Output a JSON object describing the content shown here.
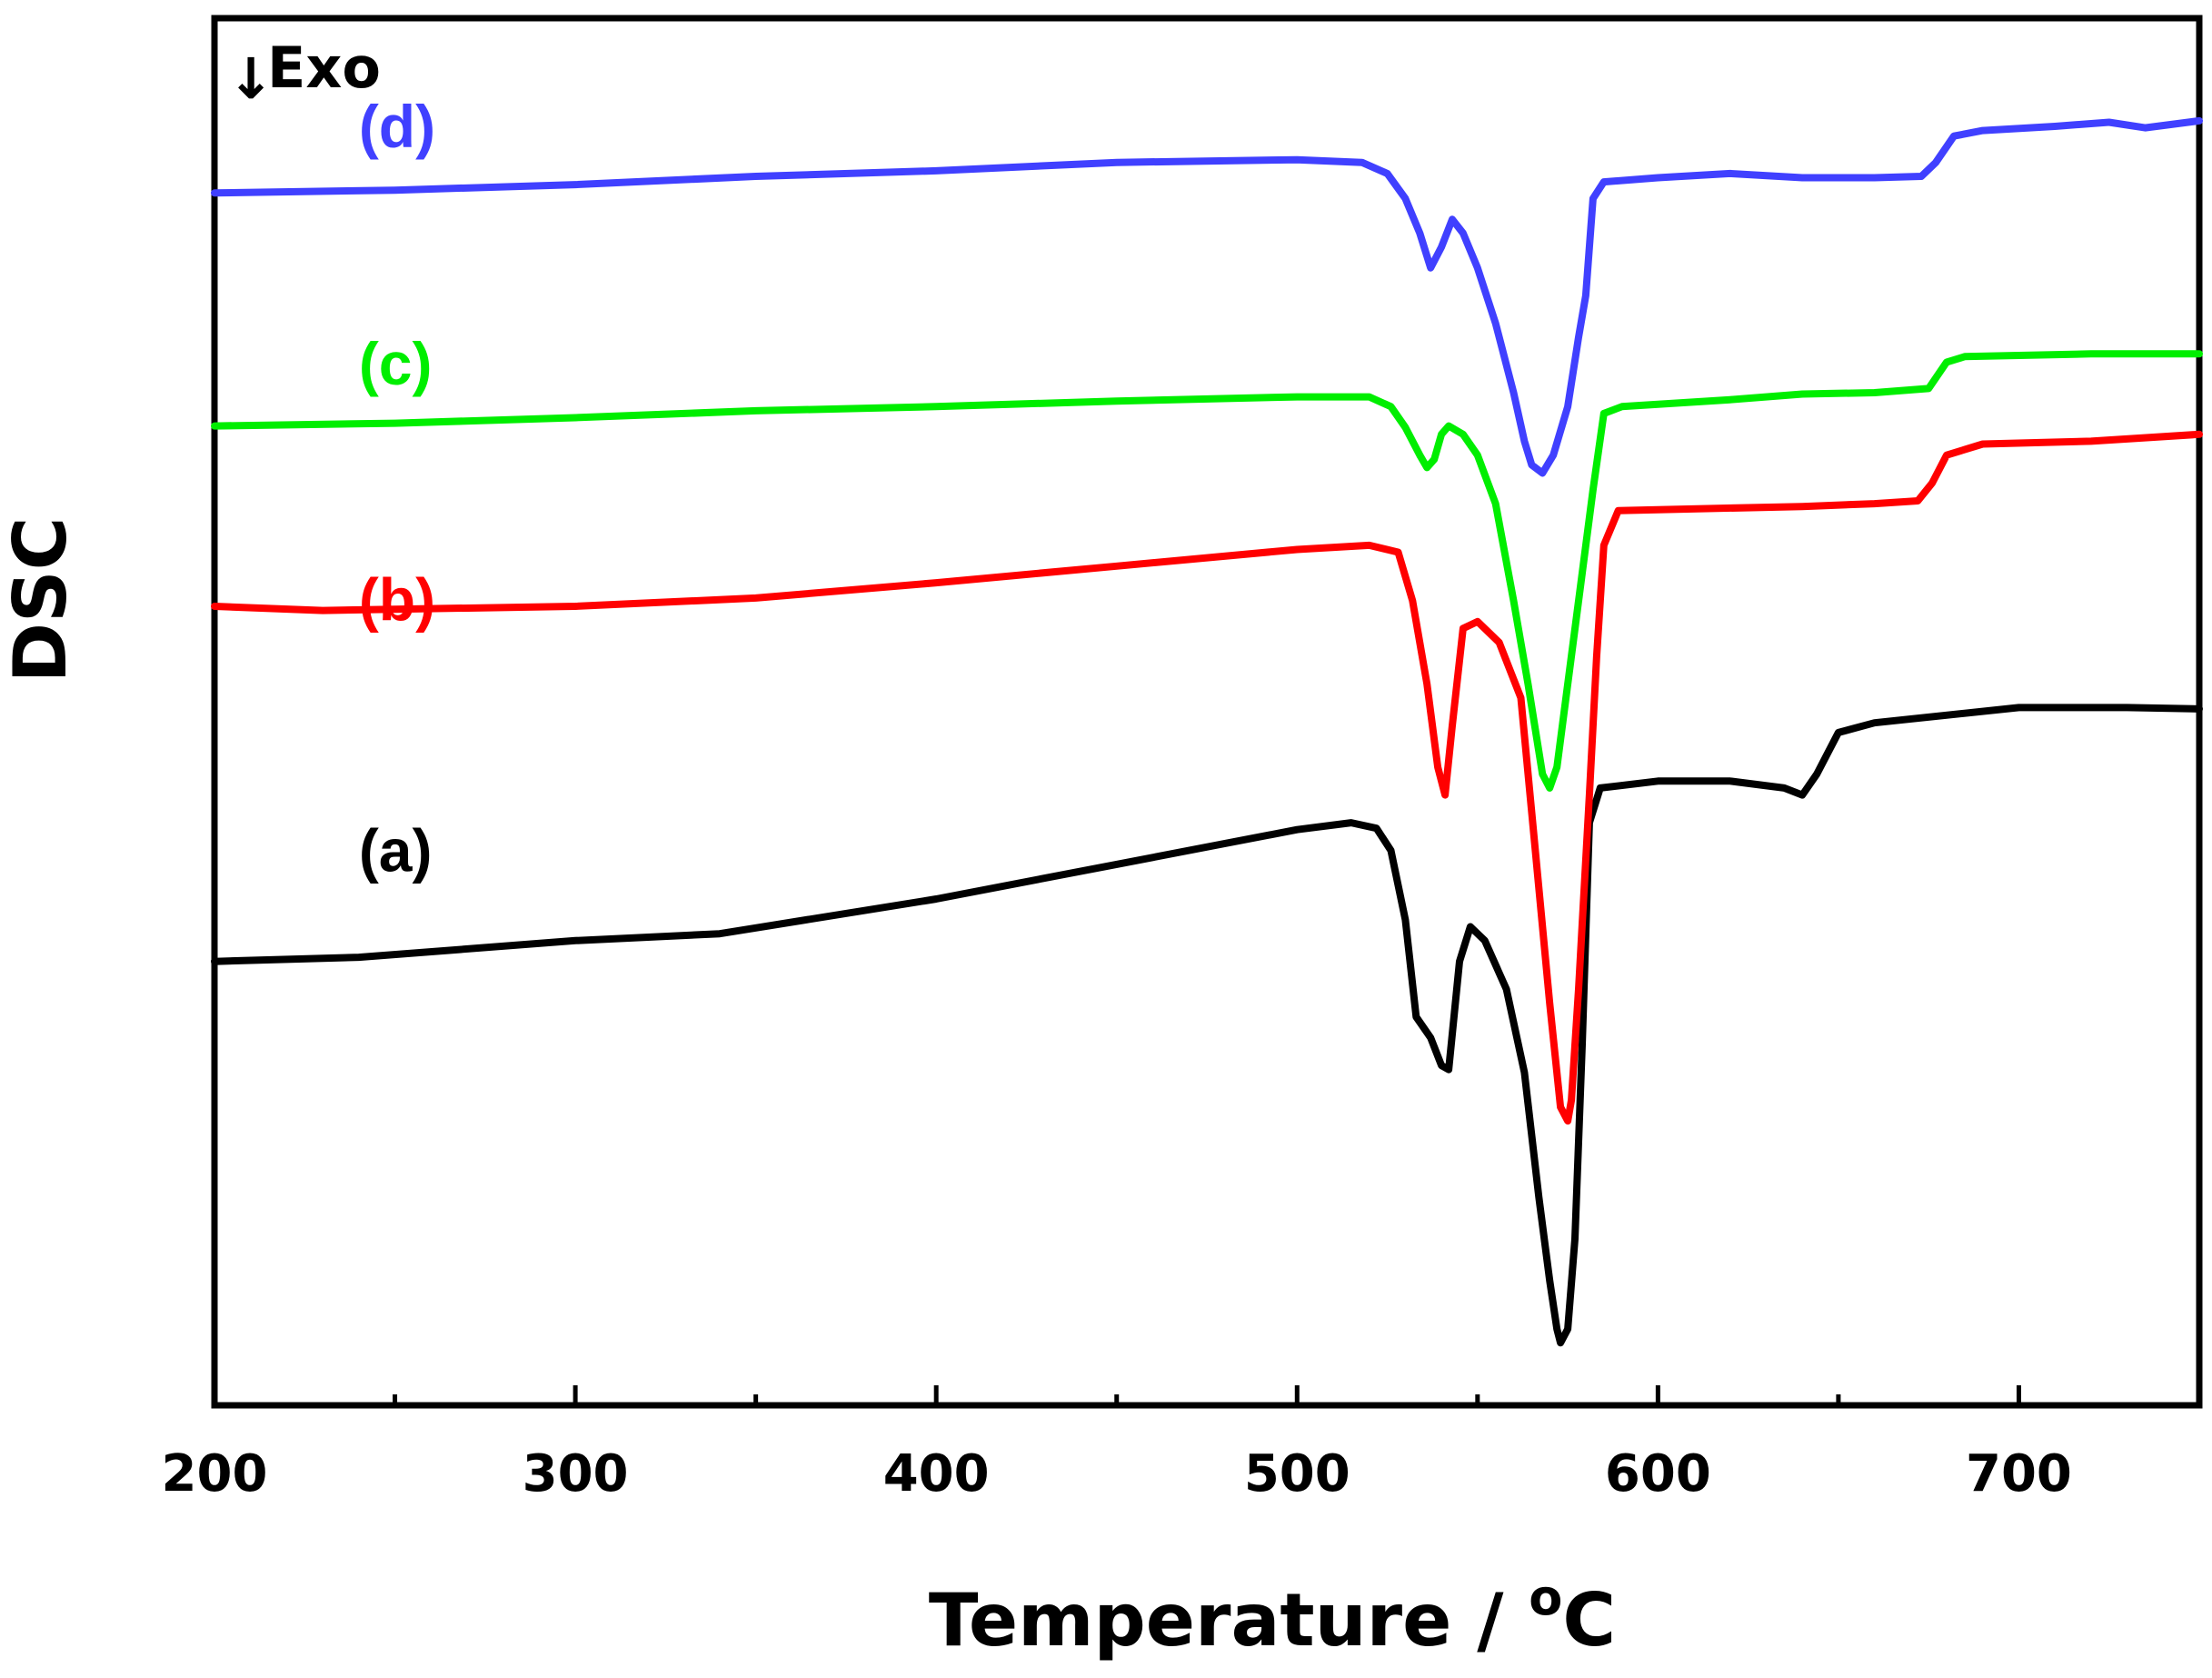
{
  "chart_data": {
    "type": "line",
    "title": "",
    "xlabel_main": "Temperature / ",
    "xlabel_degree": "o",
    "xlabel_unit": "C",
    "ylabel": "DSC",
    "xlim": [
      200,
      750
    ],
    "ylim": [
      0,
      100
    ],
    "x_ticks": [
      200,
      300,
      400,
      500,
      600,
      700
    ],
    "x_tick_labels": [
      "200",
      "300",
      "400",
      "500",
      "600",
      "700"
    ],
    "x_minor_ticks": [
      250,
      350,
      450,
      550,
      650
    ],
    "y_ticks_shown": false,
    "annotation": {
      "arrow": "↓",
      "text": "Exo"
    },
    "series": [
      {
        "name": "(a)",
        "color": "#000000",
        "label_at": [
          240,
          38.5
        ],
        "points": [
          [
            200,
            32
          ],
          [
            240,
            32.3
          ],
          [
            300,
            33.5
          ],
          [
            340,
            34
          ],
          [
            400,
            36.5
          ],
          [
            450,
            39
          ],
          [
            500,
            41.5
          ],
          [
            515,
            42
          ],
          [
            522,
            41.6
          ],
          [
            526,
            40
          ],
          [
            530,
            35
          ],
          [
            533,
            28
          ],
          [
            537,
            26.5
          ],
          [
            540,
            24.5
          ],
          [
            542,
            24.2
          ],
          [
            545,
            32
          ],
          [
            548,
            34.5
          ],
          [
            552,
            33.5
          ],
          [
            558,
            30
          ],
          [
            563,
            24
          ],
          [
            567,
            15
          ],
          [
            570,
            9
          ],
          [
            572,
            5.5
          ],
          [
            573,
            4.5
          ],
          [
            575,
            5.5
          ],
          [
            577,
            12
          ],
          [
            579,
            26
          ],
          [
            581,
            42
          ],
          [
            584,
            44.5
          ],
          [
            600,
            45
          ],
          [
            620,
            45
          ],
          [
            635,
            44.5
          ],
          [
            640,
            44
          ],
          [
            644,
            45.5
          ],
          [
            650,
            48.5
          ],
          [
            660,
            49.2
          ],
          [
            700,
            50.3
          ],
          [
            730,
            50.3
          ],
          [
            750,
            50.2
          ]
        ]
      },
      {
        "name": "(b)",
        "color": "#ff0000",
        "label_at": [
          240,
          56.6
        ],
        "points": [
          [
            200,
            57.6
          ],
          [
            230,
            57.3
          ],
          [
            300,
            57.6
          ],
          [
            350,
            58.2
          ],
          [
            400,
            59.3
          ],
          [
            450,
            60.5
          ],
          [
            500,
            61.7
          ],
          [
            520,
            62
          ],
          [
            528,
            61.5
          ],
          [
            532,
            58
          ],
          [
            536,
            52
          ],
          [
            539,
            46
          ],
          [
            541,
            44
          ],
          [
            543,
            49
          ],
          [
            546,
            56
          ],
          [
            550,
            56.5
          ],
          [
            556,
            55
          ],
          [
            562,
            51
          ],
          [
            566,
            40
          ],
          [
            570,
            29
          ],
          [
            573,
            21.5
          ],
          [
            575,
            20.5
          ],
          [
            576,
            22
          ],
          [
            578,
            30
          ],
          [
            581,
            44
          ],
          [
            583,
            54
          ],
          [
            585,
            62
          ],
          [
            589,
            64.5
          ],
          [
            640,
            64.8
          ],
          [
            660,
            65
          ],
          [
            672,
            65.2
          ],
          [
            676,
            66.5
          ],
          [
            680,
            68.5
          ],
          [
            690,
            69.3
          ],
          [
            720,
            69.5
          ],
          [
            750,
            70
          ]
        ]
      },
      {
        "name": "(c)",
        "color": "#00ee00",
        "label_at": [
          240,
          73.6
        ],
        "points": [
          [
            200,
            70.6
          ],
          [
            250,
            70.8
          ],
          [
            300,
            71.2
          ],
          [
            350,
            71.7
          ],
          [
            400,
            72
          ],
          [
            450,
            72.4
          ],
          [
            500,
            72.7
          ],
          [
            520,
            72.7
          ],
          [
            526,
            72
          ],
          [
            530,
            70.5
          ],
          [
            534,
            68.5
          ],
          [
            536,
            67.6
          ],
          [
            538,
            68.2
          ],
          [
            540,
            70
          ],
          [
            542,
            70.6
          ],
          [
            546,
            70
          ],
          [
            550,
            68.5
          ],
          [
            555,
            65
          ],
          [
            560,
            58
          ],
          [
            564,
            52
          ],
          [
            568,
            45.5
          ],
          [
            570,
            44.5
          ],
          [
            572,
            46
          ],
          [
            575,
            52
          ],
          [
            579,
            60
          ],
          [
            582,
            66
          ],
          [
            585,
            71.5
          ],
          [
            590,
            72
          ],
          [
            620,
            72.5
          ],
          [
            640,
            72.9
          ],
          [
            660,
            73
          ],
          [
            675,
            73.3
          ],
          [
            680,
            75.2
          ],
          [
            685,
            75.6
          ],
          [
            720,
            75.8
          ],
          [
            750,
            75.8
          ]
        ]
      },
      {
        "name": "(d)",
        "color": "#4040ff",
        "label_at": [
          240,
          90.7
        ],
        "points": [
          [
            200,
            87.4
          ],
          [
            250,
            87.6
          ],
          [
            300,
            88
          ],
          [
            350,
            88.6
          ],
          [
            400,
            89
          ],
          [
            450,
            89.6
          ],
          [
            500,
            89.8
          ],
          [
            518,
            89.6
          ],
          [
            525,
            88.8
          ],
          [
            530,
            87
          ],
          [
            534,
            84.5
          ],
          [
            537,
            82
          ],
          [
            540,
            83.5
          ],
          [
            543,
            85.5
          ],
          [
            546,
            84.5
          ],
          [
            550,
            82
          ],
          [
            555,
            78
          ],
          [
            560,
            73
          ],
          [
            563,
            69.5
          ],
          [
            565,
            67.8
          ],
          [
            568,
            67.2
          ],
          [
            571,
            68.5
          ],
          [
            575,
            72
          ],
          [
            578,
            77
          ],
          [
            580,
            80
          ],
          [
            582,
            87
          ],
          [
            585,
            88.2
          ],
          [
            600,
            88.5
          ],
          [
            620,
            88.8
          ],
          [
            640,
            88.5
          ],
          [
            660,
            88.5
          ],
          [
            673,
            88.6
          ],
          [
            677,
            89.6
          ],
          [
            682,
            91.5
          ],
          [
            690,
            91.9
          ],
          [
            710,
            92.2
          ],
          [
            725,
            92.5
          ],
          [
            735,
            92.1
          ],
          [
            750,
            92.6
          ]
        ]
      }
    ]
  }
}
